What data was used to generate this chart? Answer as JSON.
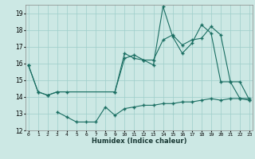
{
  "title": "",
  "xlabel": "Humidex (Indice chaleur)",
  "bg_color": "#cce8e4",
  "line_color": "#1a6e62",
  "grid_color": "#9ececa",
  "ylim": [
    12,
    19.5
  ],
  "xlim": [
    -0.3,
    23.3
  ],
  "yticks": [
    12,
    13,
    14,
    15,
    16,
    17,
    18,
    19
  ],
  "xticks": [
    0,
    1,
    2,
    3,
    4,
    5,
    6,
    7,
    8,
    9,
    10,
    11,
    12,
    13,
    14,
    15,
    16,
    17,
    18,
    19,
    20,
    21,
    22,
    23
  ],
  "series1_x": [
    0,
    1,
    2,
    3,
    4,
    9,
    10,
    11,
    12,
    13,
    14,
    15,
    16,
    17,
    18,
    19,
    20,
    21,
    22,
    23
  ],
  "series1_y": [
    15.9,
    14.3,
    14.1,
    14.3,
    14.3,
    14.3,
    16.6,
    16.3,
    16.2,
    15.9,
    19.4,
    17.6,
    16.6,
    17.2,
    18.3,
    17.8,
    14.9,
    14.9,
    13.9,
    13.9
  ],
  "series2_x": [
    0,
    1,
    2,
    3,
    9,
    10,
    11,
    12,
    13,
    14,
    15,
    16,
    17,
    18,
    19,
    20,
    21,
    22,
    23
  ],
  "series2_y": [
    15.9,
    14.3,
    14.1,
    14.3,
    14.3,
    16.3,
    16.5,
    16.2,
    16.2,
    17.4,
    17.7,
    17.1,
    17.4,
    17.5,
    18.2,
    17.7,
    14.9,
    14.9,
    13.8
  ],
  "series3_x": [
    3,
    4,
    5,
    6,
    7,
    8,
    9,
    10,
    11,
    12,
    13,
    14,
    15,
    16,
    17,
    18,
    19,
    20,
    21,
    22,
    23
  ],
  "series3_y": [
    13.1,
    12.8,
    12.5,
    12.5,
    12.5,
    13.4,
    12.9,
    13.3,
    13.4,
    13.5,
    13.5,
    13.6,
    13.6,
    13.7,
    13.7,
    13.8,
    13.9,
    13.8,
    13.9,
    13.9,
    13.8
  ]
}
